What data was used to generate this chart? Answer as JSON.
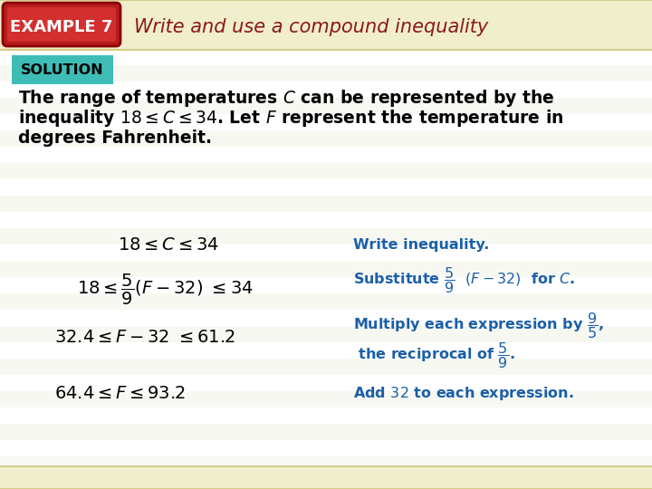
{
  "bg_color": "#fafaf0",
  "header_bg": "#f0eecc",
  "content_bg": "#ffffff",
  "stripe_color": "#f5f5e0",
  "title_text": "Write and use a compound inequality",
  "title_color": "#8B1A1A",
  "example_label": "EXAMPLE 7",
  "example_bg_outer": "#c0392b",
  "example_bg_inner": "#e74c3c",
  "example_text_color": "#ffffff",
  "solution_label": "SOLUTION",
  "solution_bg": "#3dbdb5",
  "body_text_color": "#000000",
  "math_color": "#000000",
  "annotation_color": "#1a5fa8",
  "figsize": [
    7.2,
    5.4
  ],
  "dpi": 100
}
